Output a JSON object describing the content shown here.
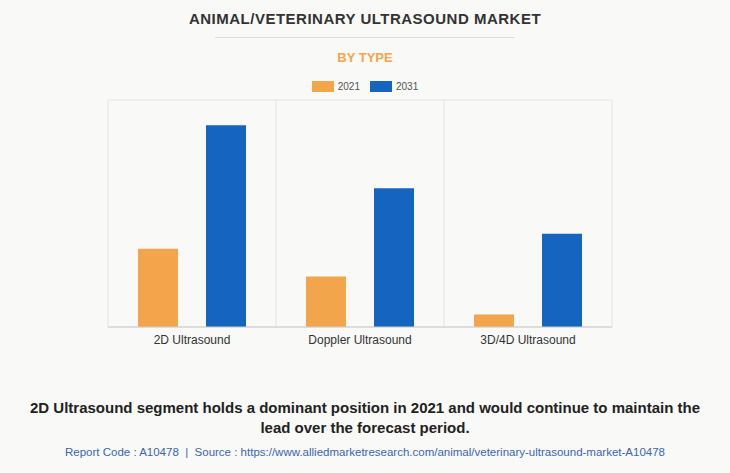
{
  "chart_data": {
    "type": "bar",
    "title": "ANIMAL/VETERINARY ULTRASOUND MARKET",
    "subtitle": "BY TYPE",
    "categories": [
      "2D Ultrasound",
      "Doppler Ultrasound",
      "3D/4D Ultrasound"
    ],
    "series": [
      {
        "name": "2021",
        "color": "#f2a54a",
        "values": [
          3.1,
          2.0,
          0.5
        ]
      },
      {
        "name": "2031",
        "color": "#1565c0",
        "values": [
          8.0,
          5.5,
          3.7
        ]
      }
    ],
    "ylim": [
      0,
      9
    ],
    "yticks": [
      0,
      1,
      2,
      3,
      4,
      5,
      6,
      7,
      8,
      9
    ],
    "grid": true,
    "tick_labels": "x",
    "legend": "top",
    "caption": "2D Ultrasound segment holds a dominant position in 2021 and would continue to maintain the lead over the forecast period.",
    "source": "Report Code : A10478  |  Source : https://www.alliedmarketresearch.com/animal/veterinary-ultrasound-market-A10478"
  }
}
